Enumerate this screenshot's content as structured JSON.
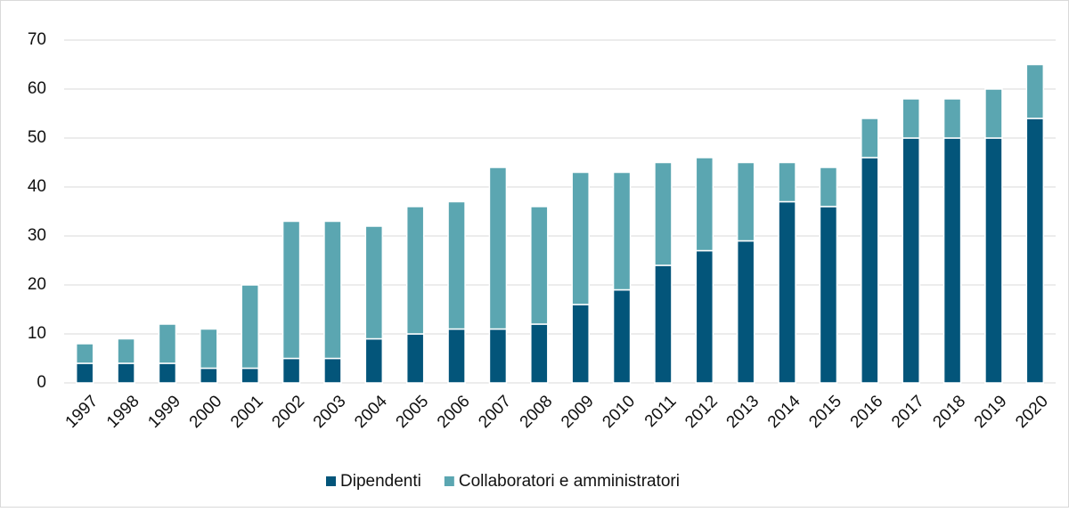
{
  "chart_data": {
    "type": "stacked_bar",
    "categories": [
      "1997",
      "1998",
      "1999",
      "2000",
      "2001",
      "2002",
      "2003",
      "2004",
      "2005",
      "2006",
      "2007",
      "2008",
      "2009",
      "2010",
      "2011",
      "2012",
      "2013",
      "2014",
      "2015",
      "2016",
      "2017",
      "2018",
      "2019",
      "2020"
    ],
    "series": [
      {
        "name": "Dipendenti",
        "color": "#03557a",
        "values": [
          4,
          4,
          4,
          3,
          3,
          5,
          5,
          9,
          10,
          11,
          11,
          12,
          16,
          19,
          24,
          27,
          29,
          37,
          36,
          46,
          50,
          50,
          50,
          54
        ]
      },
      {
        "name": "Collaboratori e amministratori",
        "color": "#5ba6b1",
        "values": [
          4,
          5,
          8,
          8,
          17,
          28,
          28,
          23,
          26,
          26,
          33,
          24,
          27,
          24,
          21,
          19,
          16,
          8,
          8,
          8,
          8,
          8,
          10,
          11
        ]
      }
    ],
    "ylim": [
      0,
      70
    ],
    "yticks": [
      0,
      10,
      20,
      30,
      40,
      50,
      60,
      70
    ],
    "grid": true,
    "legend": "bottom"
  }
}
